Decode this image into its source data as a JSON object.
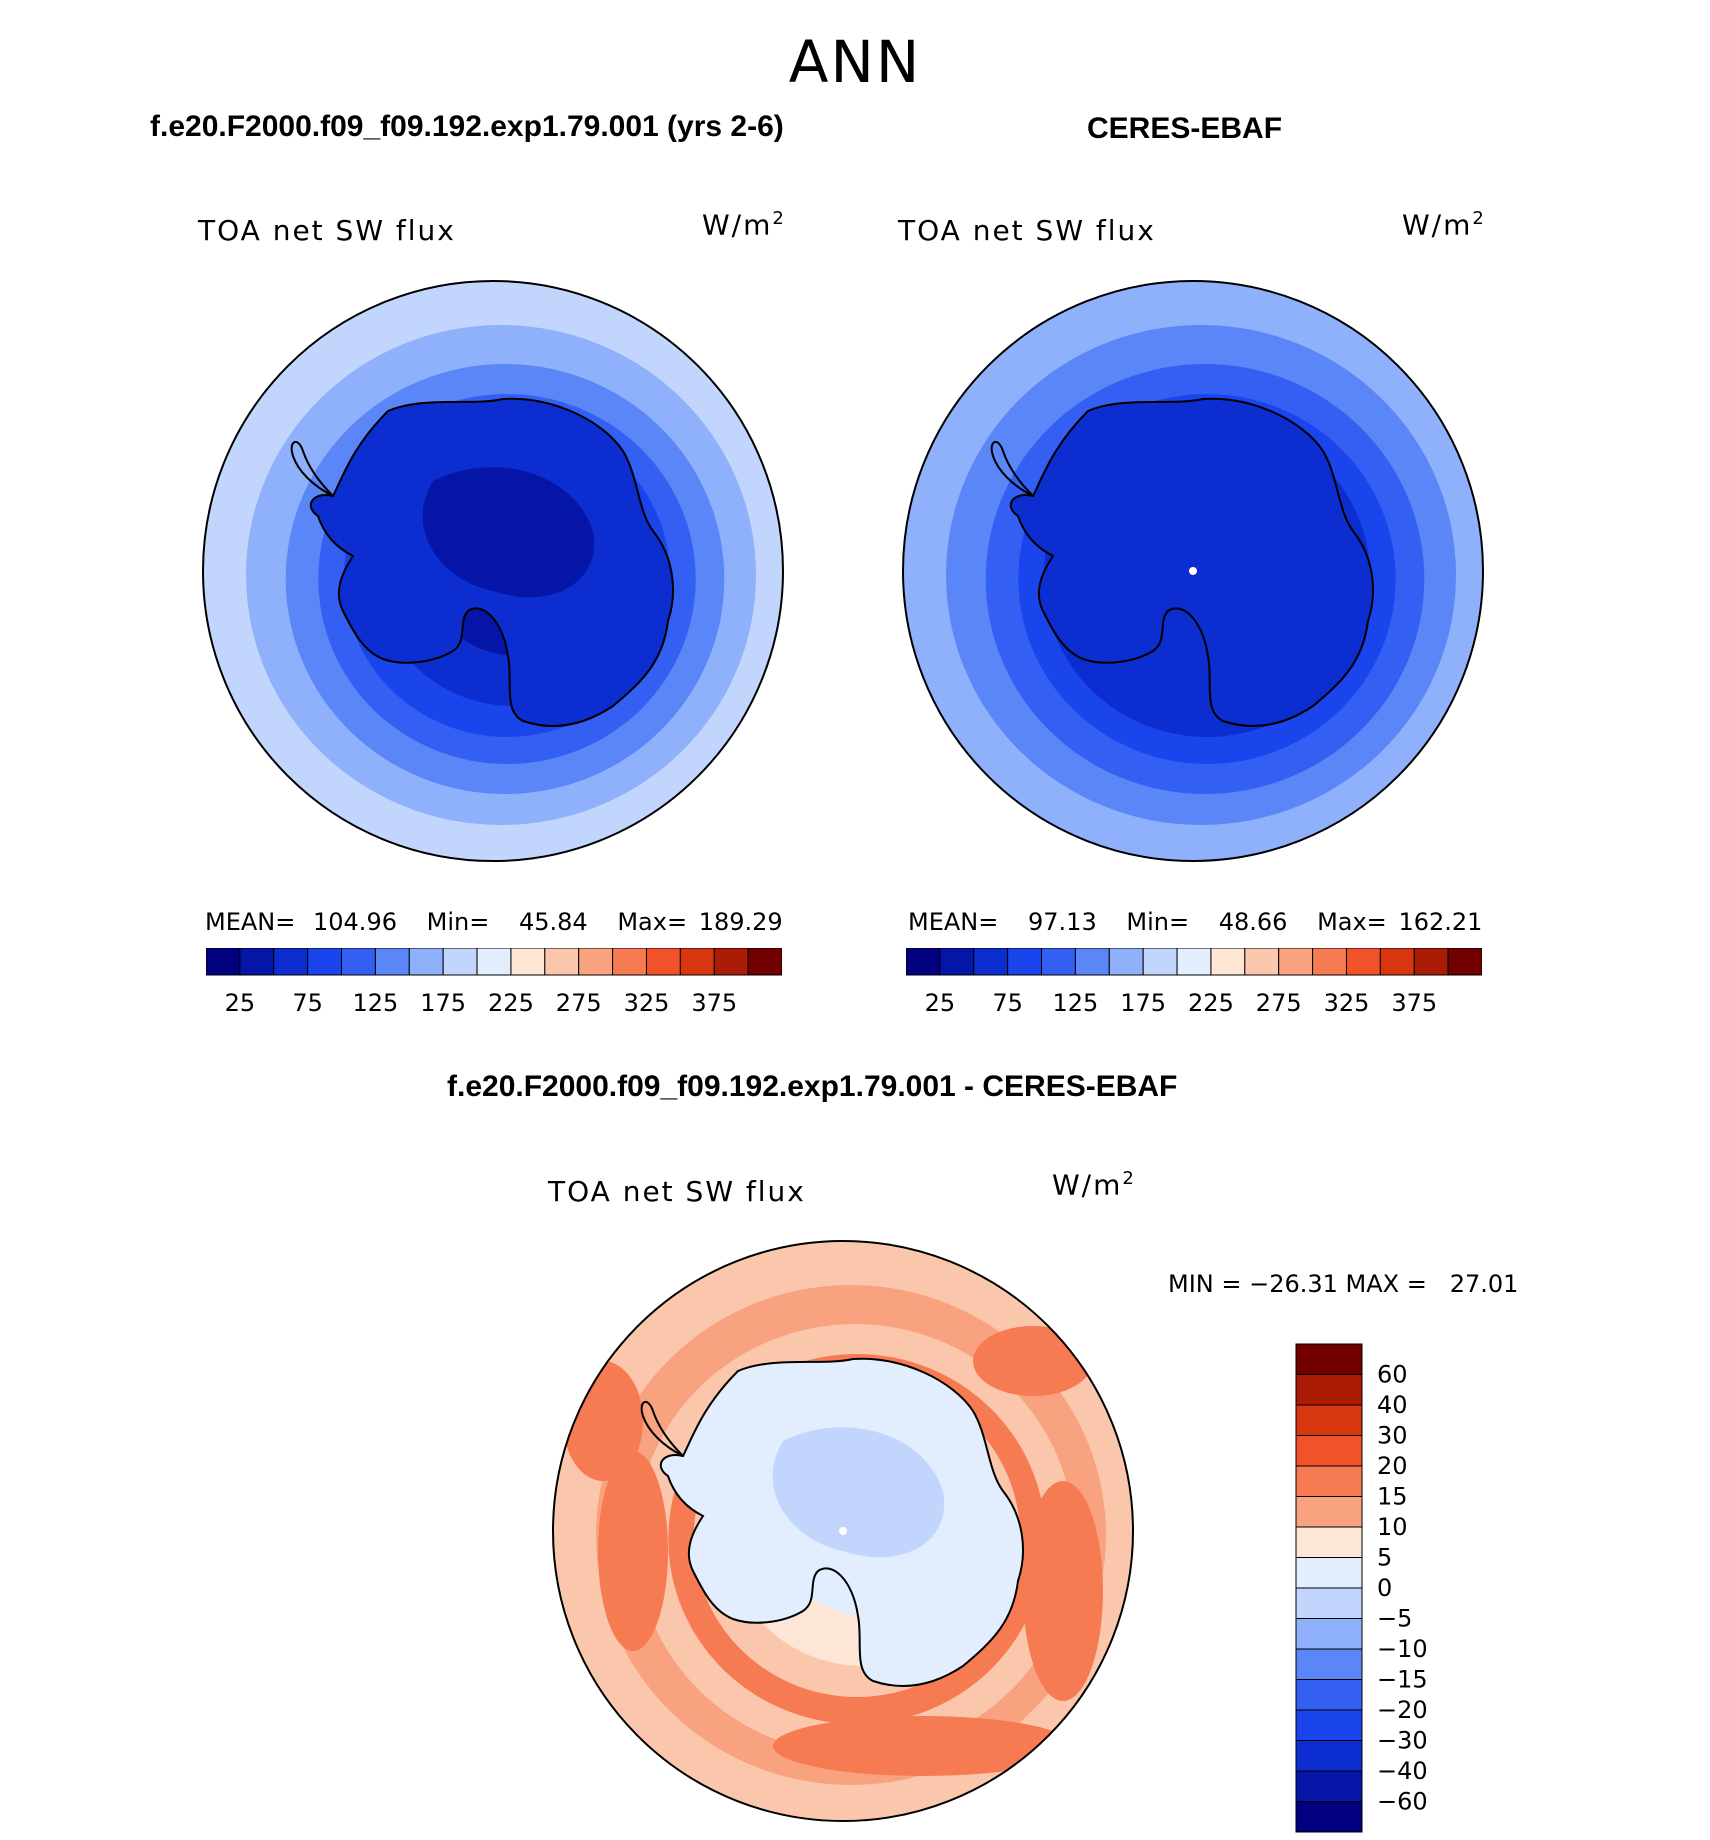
{
  "season": "ANN",
  "panels": [
    {
      "title": "f.e20.F2000.f09_f09.192.exp1.79.001 (yrs 2-6)",
      "variable": "TOA net SW flux",
      "units": "W/m",
      "units_exp": "2",
      "stats": {
        "mean_label": "MEAN=",
        "mean": "104.96",
        "min_label": "Min=",
        "min": "45.84",
        "max_label": "Max=",
        "max": "189.29"
      }
    },
    {
      "title": "CERES-EBAF",
      "variable": "TOA net SW flux",
      "units": "W/m",
      "units_exp": "2",
      "stats": {
        "mean_label": "MEAN=",
        "mean": "97.13",
        "min_label": "Min=",
        "min": "48.66",
        "max_label": "Max=",
        "max": "162.21"
      }
    }
  ],
  "diff_panel": {
    "title": "f.e20.F2000.f09_f09.192.exp1.79.001 - CERES-EBAF",
    "variable": "TOA net SW flux",
    "units": "W/m",
    "units_exp": "2",
    "minmax": "MIN = −26.31 MAX =   27.01"
  },
  "colorbar_abs": {
    "colors": [
      "#000080",
      "#0515a8",
      "#0c2ed0",
      "#1a45ec",
      "#3360f2",
      "#5b86f7",
      "#8fb0fb",
      "#c2d6fd",
      "#e2edfe",
      "#fde6d6",
      "#fbc7ac",
      "#f9a27f",
      "#f67a52",
      "#f2522a",
      "#d8360f",
      "#ab1c07",
      "#730000"
    ],
    "tick_labels": [
      "25",
      "75",
      "125",
      "175",
      "225",
      "275",
      "325",
      "375"
    ]
  },
  "colorbar_diff": {
    "colors": [
      "#730000",
      "#ab1c07",
      "#d8360f",
      "#f2522a",
      "#f67a52",
      "#f9a27f",
      "#fde6d6",
      "#e2edfe",
      "#c2d6fd",
      "#8fb0fb",
      "#5b86f7",
      "#3360f2",
      "#1a45ec",
      "#0c2ed0",
      "#0515a8",
      "#000080"
    ],
    "tick_labels": [
      "60",
      "40",
      "30",
      "20",
      "15",
      "10",
      "5",
      "0",
      "−5",
      "−10",
      "−15",
      "−20",
      "−30",
      "−40",
      "−60"
    ]
  },
  "map_colors": {
    "model": [
      "#c2d6fd",
      "#8fb0fb",
      "#5b86f7",
      "#3360f2",
      "#1a45ec",
      "#0c2ed0",
      "#0515a8"
    ],
    "obs": [
      "#8fb0fb",
      "#5b86f7",
      "#3360f2",
      "#1a45ec",
      "#0c2ed0",
      "#0c2ed0",
      "#0c2ed0"
    ],
    "diff": [
      "#fbc7ac",
      "#f9a27f",
      "#fbc7ac",
      "#f67a52",
      "#fbc7ac",
      "#fde6d6",
      "#e2edfe"
    ],
    "continent_outline": "#000000",
    "pole_marker": "#ffffff"
  }
}
